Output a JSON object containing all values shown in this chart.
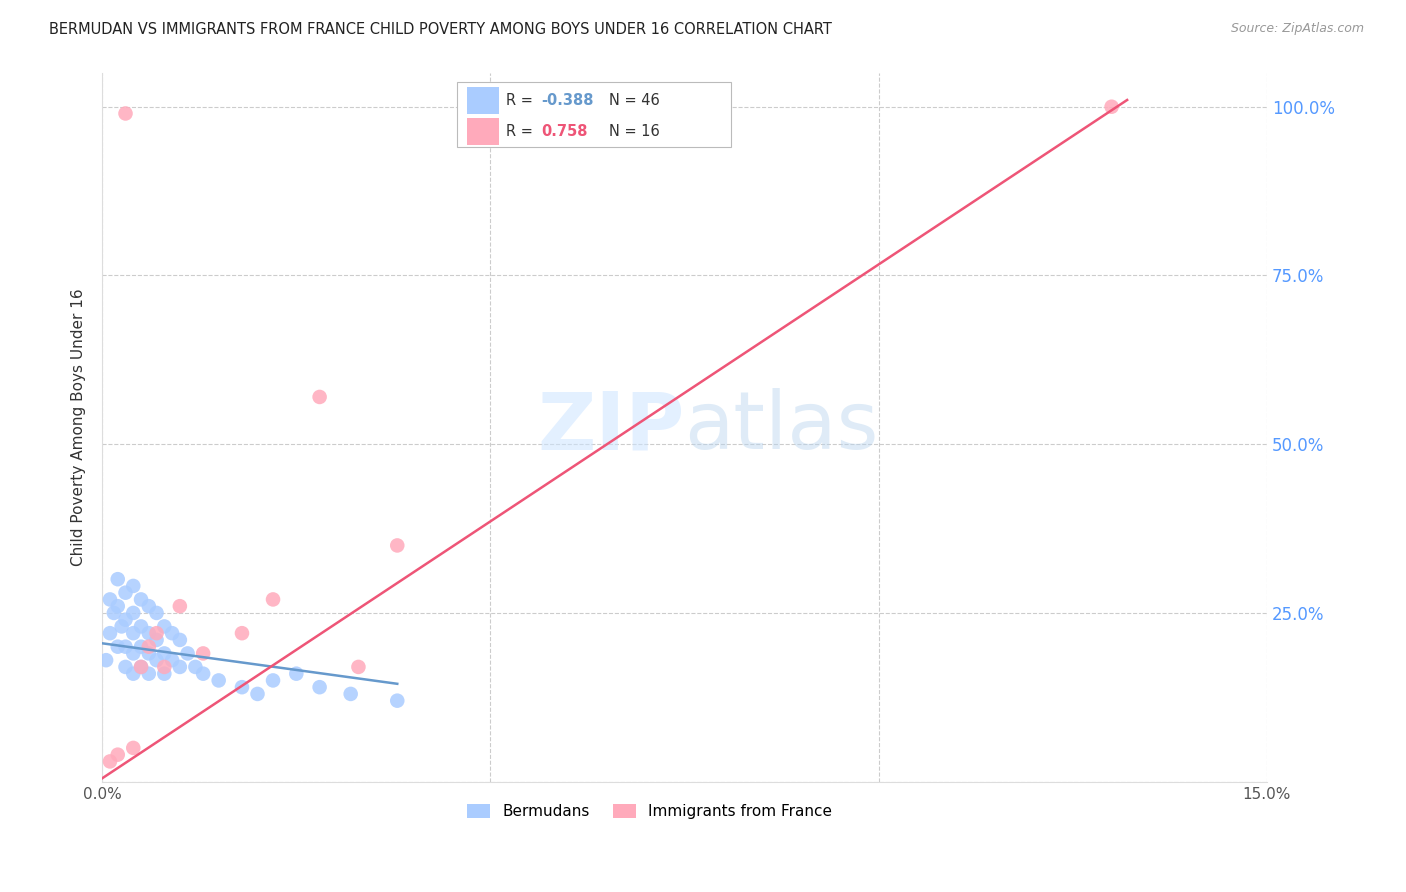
{
  "title": "BERMUDAN VS IMMIGRANTS FROM FRANCE CHILD POVERTY AMONG BOYS UNDER 16 CORRELATION CHART",
  "source": "Source: ZipAtlas.com",
  "ylabel": "Child Poverty Among Boys Under 16",
  "xlim": [
    0.0,
    0.15
  ],
  "ylim": [
    0.0,
    1.05
  ],
  "right_ytick_color": "#5599ff",
  "blue_color": "#aaccff",
  "pink_color": "#ffaabb",
  "blue_line_color": "#6699cc",
  "pink_line_color": "#ee5577",
  "bermudans_label": "Bermudans",
  "france_label": "Immigrants from France",
  "blue_scatter_x": [
    0.0005,
    0.001,
    0.001,
    0.0015,
    0.002,
    0.002,
    0.002,
    0.0025,
    0.003,
    0.003,
    0.003,
    0.003,
    0.004,
    0.004,
    0.004,
    0.004,
    0.004,
    0.005,
    0.005,
    0.005,
    0.005,
    0.006,
    0.006,
    0.006,
    0.006,
    0.007,
    0.007,
    0.007,
    0.008,
    0.008,
    0.008,
    0.009,
    0.009,
    0.01,
    0.01,
    0.011,
    0.012,
    0.013,
    0.015,
    0.018,
    0.02,
    0.022,
    0.025,
    0.028,
    0.032,
    0.038
  ],
  "blue_scatter_y": [
    0.18,
    0.27,
    0.22,
    0.25,
    0.3,
    0.26,
    0.2,
    0.23,
    0.28,
    0.24,
    0.2,
    0.17,
    0.29,
    0.25,
    0.22,
    0.19,
    0.16,
    0.27,
    0.23,
    0.2,
    0.17,
    0.26,
    0.22,
    0.19,
    0.16,
    0.25,
    0.21,
    0.18,
    0.23,
    0.19,
    0.16,
    0.22,
    0.18,
    0.21,
    0.17,
    0.19,
    0.17,
    0.16,
    0.15,
    0.14,
    0.13,
    0.15,
    0.16,
    0.14,
    0.13,
    0.12
  ],
  "pink_scatter_x": [
    0.001,
    0.002,
    0.003,
    0.004,
    0.005,
    0.006,
    0.007,
    0.008,
    0.01,
    0.013,
    0.018,
    0.022,
    0.028,
    0.033,
    0.038,
    0.13
  ],
  "pink_scatter_y": [
    0.03,
    0.04,
    0.99,
    0.05,
    0.17,
    0.2,
    0.22,
    0.17,
    0.26,
    0.19,
    0.22,
    0.27,
    0.57,
    0.17,
    0.35,
    1.0
  ],
  "blue_line_x": [
    0.0,
    0.038
  ],
  "blue_line_y": [
    0.205,
    0.145
  ],
  "pink_line_x": [
    0.0,
    0.132
  ],
  "pink_line_y": [
    0.005,
    1.01
  ],
  "legend_entries": [
    {
      "color": "#aaccff",
      "r": "R = -0.388",
      "n": "N = 46"
    },
    {
      "color": "#ffaabb",
      "r": "R =  0.758",
      "n": "N = 16"
    }
  ]
}
